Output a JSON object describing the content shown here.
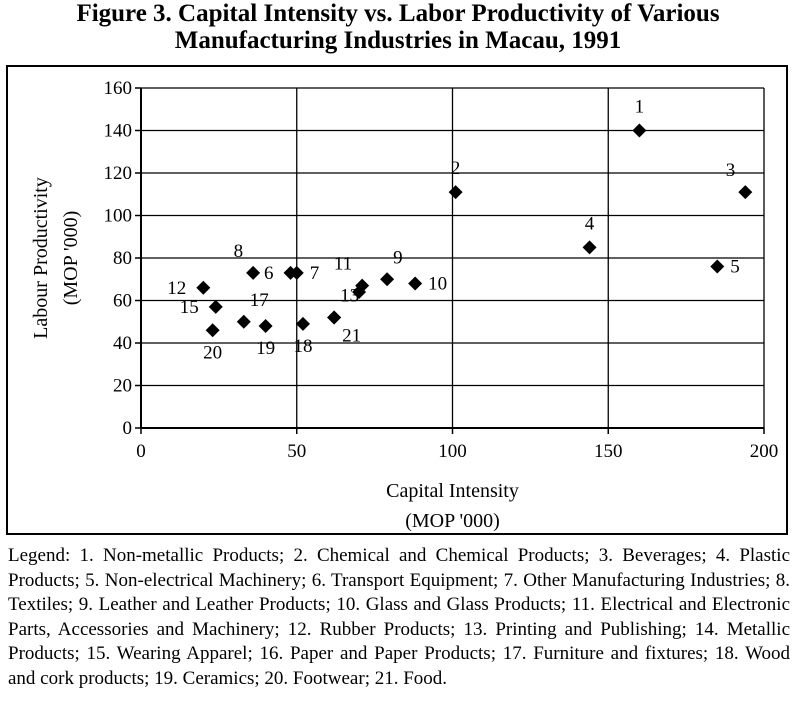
{
  "title_line1": "Figure 3. Capital Intensity vs. Labor Productivity of Various",
  "title_line2": "Manufacturing Industries in Macau, 1991",
  "legend_text": "Legend: 1. Non-metallic Products; 2. Chemical and Chemical Products; 3. Beverages; 4. Plastic Products; 5. Non-electrical Machinery; 6. Transport Equipment; 7. Other Manufacturing Industries; 8. Textiles; 9. Leather and Leather Products; 10. Glass and Glass Products; 11. Electrical and Electronic Parts, Accessories and Machinery; 12. Rubber Products; 13. Printing and Publishing; 14. Metallic Products; 15. Wearing Apparel; 16. Paper and Paper Products; 17. Furniture and fixtures; 18. Wood and cork products; 19. Ceramics; 20. Footwear; 21. Food.",
  "chart_data": {
    "type": "scatter",
    "title": "Figure 3. Capital Intensity vs. Labor Productivity of Various Manufacturing Industries in Macau, 1991",
    "xlabel": "Capital Intensity",
    "xlabel_unit": "(MOP '000)",
    "ylabel": "Labour Productivity",
    "ylabel_unit": "(MOP '000)",
    "xlim": [
      0,
      200
    ],
    "ylim": [
      0,
      160
    ],
    "xticks": [
      0,
      50,
      100,
      150,
      200
    ],
    "yticks": [
      0,
      20,
      40,
      60,
      80,
      100,
      120,
      140,
      160
    ],
    "grid": true,
    "marker": "diamond",
    "marker_color": "#000000",
    "points": [
      {
        "label": "1",
        "x": 160,
        "y": 140
      },
      {
        "label": "2",
        "x": 101,
        "y": 111
      },
      {
        "label": "3",
        "x": 194,
        "y": 111
      },
      {
        "label": "4",
        "x": 144,
        "y": 85
      },
      {
        "label": "5",
        "x": 185,
        "y": 76
      },
      {
        "label": "6",
        "x": 48,
        "y": 73
      },
      {
        "label": "7",
        "x": 50,
        "y": 73
      },
      {
        "label": "8",
        "x": 36,
        "y": 73
      },
      {
        "label": "9",
        "x": 79,
        "y": 70
      },
      {
        "label": "10",
        "x": 88,
        "y": 68
      },
      {
        "label": "11",
        "x": 71,
        "y": 67
      },
      {
        "label": "12",
        "x": 20,
        "y": 66
      },
      {
        "label": "13",
        "x": 62,
        "y": 52
      },
      {
        "label": "14",
        "x": 70,
        "y": 64
      },
      {
        "label": "15",
        "x": 24,
        "y": 57
      },
      {
        "label": "17",
        "x": 33,
        "y": 50
      },
      {
        "label": "18",
        "x": 52,
        "y": 49
      },
      {
        "label": "19",
        "x": 40,
        "y": 48
      },
      {
        "label": "20",
        "x": 23,
        "y": 46
      },
      {
        "label": "21",
        "x": 62,
        "y": 52
      }
    ],
    "point_labels": [
      {
        "text": "1",
        "x": 160,
        "y": 140,
        "pos": "above"
      },
      {
        "text": "2",
        "x": 101,
        "y": 111,
        "pos": "above"
      },
      {
        "text": "3",
        "x": 194,
        "y": 111,
        "pos": "above-left"
      },
      {
        "text": "4",
        "x": 144,
        "y": 85,
        "pos": "above"
      },
      {
        "text": "5",
        "x": 185,
        "y": 76,
        "pos": "right"
      },
      {
        "text": "6",
        "x": 48,
        "y": 73,
        "pos": "left"
      },
      {
        "text": "7",
        "x": 50,
        "y": 73,
        "pos": "right"
      },
      {
        "text": "8",
        "x": 36,
        "y": 73,
        "pos": "above-left"
      },
      {
        "text": "9",
        "x": 79,
        "y": 70,
        "pos": "above-right"
      },
      {
        "text": "10",
        "x": 88,
        "y": 68,
        "pos": "right"
      },
      {
        "text": "11",
        "x": 71,
        "y": 67,
        "pos": "above-left"
      },
      {
        "text": "12",
        "x": 20,
        "y": 66,
        "pos": "left"
      },
      {
        "text": "13",
        "x": 62,
        "y": 52,
        "pos": "above-right"
      },
      {
        "text": "15",
        "x": 24,
        "y": 57,
        "pos": "left"
      },
      {
        "text": "17",
        "x": 33,
        "y": 50,
        "pos": "above-right"
      },
      {
        "text": "18",
        "x": 52,
        "y": 49,
        "pos": "below"
      },
      {
        "text": "19",
        "x": 40,
        "y": 48,
        "pos": "below"
      },
      {
        "text": "20",
        "x": 23,
        "y": 46,
        "pos": "below"
      },
      {
        "text": "21",
        "x": 62,
        "y": 52,
        "pos": "below-right"
      }
    ]
  }
}
